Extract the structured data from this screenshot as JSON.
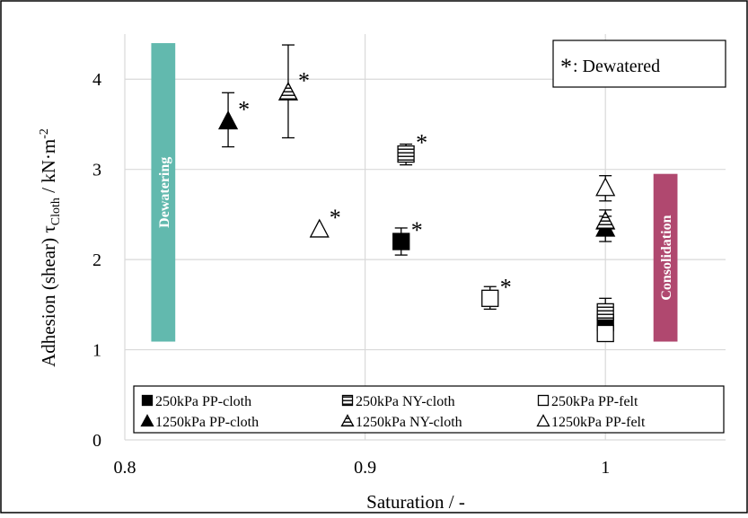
{
  "chart_data": {
    "type": "scatter",
    "xlabel": "Saturation / -",
    "ylabel": {
      "prefix": "Adhesion (shear) τ",
      "sub": "Cloth",
      "mid": " / kN·m",
      "sup": "-2"
    },
    "xlim": [
      0.8,
      1.05
    ],
    "ylim": [
      0,
      4.5
    ],
    "xticks": [
      {
        "v": 0.8,
        "label": "0.8"
      },
      {
        "v": 0.9,
        "label": "0.9"
      },
      {
        "v": 1.0,
        "label": "1"
      }
    ],
    "yticks": [
      {
        "v": 0,
        "label": "0"
      },
      {
        "v": 1,
        "label": "1"
      },
      {
        "v": 2,
        "label": "2"
      },
      {
        "v": 3,
        "label": "3"
      },
      {
        "v": 4,
        "label": "4"
      }
    ],
    "grid": true,
    "regions": [
      {
        "label": "Dewatering",
        "x": [
          0.811,
          0.821
        ],
        "y": [
          1.09,
          4.4
        ],
        "color": "#62b9ae"
      },
      {
        "label": "Consolidation",
        "x": [
          1.02,
          1.03
        ],
        "y": [
          1.09,
          2.95
        ],
        "color": "#b0486f"
      }
    ],
    "annotation_box": {
      "star": "*",
      "text": ": Dewatered"
    },
    "star_symbol": "*",
    "series": [
      {
        "name": "250kPa PP-cloth",
        "marker": "square-filled",
        "points": [
          {
            "x": 0.915,
            "y": 2.2,
            "yerr": [
              2.05,
              2.35
            ],
            "star": true
          },
          {
            "x": 1.0,
            "y": 1.3,
            "star": false
          }
        ]
      },
      {
        "name": "250kPa NY-cloth",
        "marker": "square-striped",
        "points": [
          {
            "x": 0.917,
            "y": 3.17,
            "yerr": [
              3.05,
              3.28
            ],
            "star": true
          },
          {
            "x": 1.0,
            "y": 1.42,
            "yerr": [
              1.3,
              1.57
            ],
            "star": false
          }
        ]
      },
      {
        "name": "250kPa PP-felt",
        "marker": "square-open",
        "points": [
          {
            "x": 0.952,
            "y": 1.57,
            "yerr": [
              1.45,
              1.7
            ],
            "star": true
          },
          {
            "x": 1.0,
            "y": 1.18,
            "star": false
          }
        ]
      },
      {
        "name": "1250kPa PP-cloth",
        "marker": "triangle-filled",
        "points": [
          {
            "x": 0.843,
            "y": 3.54,
            "yerr": [
              3.25,
              3.85
            ],
            "star": true
          },
          {
            "x": 1.0,
            "y": 2.35,
            "yerr": [
              2.2,
              2.48
            ],
            "star": false
          }
        ]
      },
      {
        "name": "1250kPa NY-cloth",
        "marker": "triangle-striped",
        "points": [
          {
            "x": 0.868,
            "y": 3.86,
            "yerr": [
              3.35,
              4.38
            ],
            "star": true
          },
          {
            "x": 1.0,
            "y": 2.43,
            "yerr": [
              2.3,
              2.55
            ],
            "star": false
          }
        ]
      },
      {
        "name": "1250kPa PP-felt",
        "marker": "triangle-open",
        "points": [
          {
            "x": 0.881,
            "y": 2.34,
            "star": true
          },
          {
            "x": 1.0,
            "y": 2.8,
            "yerr": [
              2.65,
              2.93
            ],
            "star": false
          }
        ]
      }
    ],
    "legend": {
      "placement": "bottom",
      "columns": 3
    }
  }
}
